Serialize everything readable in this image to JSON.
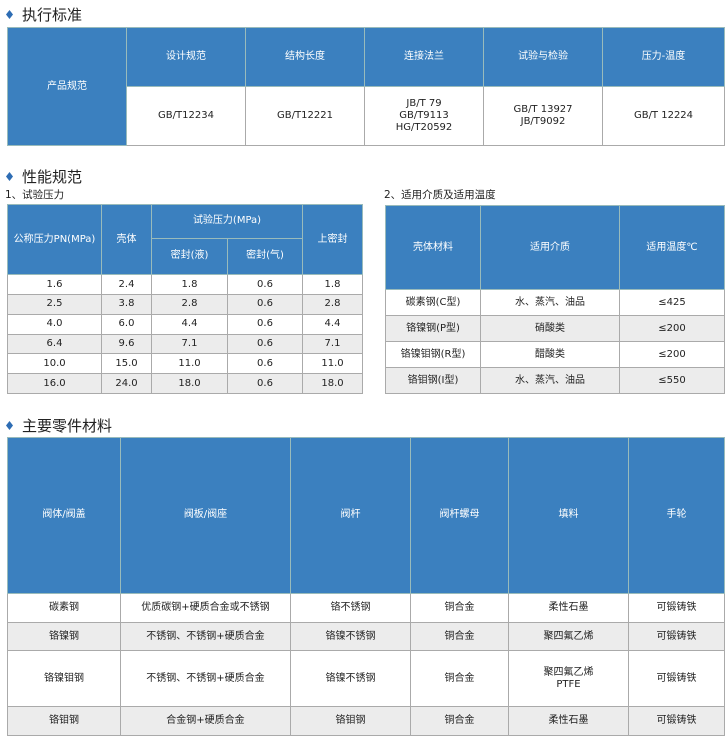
{
  "sections": {
    "standards": "执行标准",
    "performance": "性能规范",
    "materials": "主要零件材料"
  },
  "standards": {
    "row_label": "产品规范",
    "headers": [
      "设计规范",
      "结构长度",
      "连接法兰",
      "试验与检验",
      "压力-温度"
    ],
    "values": [
      "GB/T12234",
      "GB/T12221",
      "JB/T 79\nGB/T9113\nHG/T20592",
      "GB/T 13927\nJB/T9092",
      "GB/T 12224"
    ]
  },
  "pressure": {
    "caption": "1、试验压力",
    "headers": {
      "pn": "公称压力PN(MPa)",
      "shell": "壳体",
      "test": "试验压力(MPa)",
      "liquid": "密封(液)",
      "gas": "密封(气)",
      "upper": "上密封"
    },
    "rows": [
      [
        "1.6",
        "2.4",
        "1.8",
        "0.6",
        "1.8"
      ],
      [
        "2.5",
        "3.8",
        "2.8",
        "0.6",
        "2.8"
      ],
      [
        "4.0",
        "6.0",
        "4.4",
        "0.6",
        "4.4"
      ],
      [
        "6.4",
        "9.6",
        "7.1",
        "0.6",
        "7.1"
      ],
      [
        "10.0",
        "15.0",
        "11.0",
        "0.6",
        "11.0"
      ],
      [
        "16.0",
        "24.0",
        "18.0",
        "0.6",
        "18.0"
      ]
    ]
  },
  "media": {
    "caption": "2、适用介质及适用温度",
    "headers": [
      "壳体材料",
      "适用介质",
      "适用温度℃"
    ],
    "rows": [
      [
        "碳素钢(C型)",
        "水、蒸汽、油品",
        "≤425"
      ],
      [
        "铬镍钢(P型)",
        "硝酸类",
        "≤200"
      ],
      [
        "铬镍钼钢(R型)",
        "醋酸类",
        "≤200"
      ],
      [
        "铬钼钢(I型)",
        "水、蒸汽、油品",
        "≤550"
      ]
    ]
  },
  "parts": {
    "headers": [
      "阀体/阀盖",
      "阀板/阀座",
      "阀杆",
      "阀杆螺母",
      "填料",
      "手轮"
    ],
    "rows": [
      [
        "碳素钢",
        "优质碳钢+硬质合金或不锈钢",
        "铬不锈钢",
        "铜合金",
        "柔性石墨",
        "可锻铸铁"
      ],
      [
        "铬镍钢",
        "不锈钢、不锈钢+硬质合金",
        "铬镍不锈钢",
        "铜合金",
        "聚四氟乙烯",
        "可锻铸铁"
      ],
      [
        "铬镍钼钢",
        "不锈钢、不锈钢+硬质合金",
        "铬镍不锈钢",
        "铜合金",
        "聚四氟乙烯\nPTFE",
        "可锻铸铁"
      ],
      [
        "铬钼钢",
        "合金钢+硬质合金",
        "铬钼钢",
        "铜合金",
        "柔性石墨",
        "可锻铸铁"
      ]
    ]
  },
  "colors": {
    "header": "#3b80bf",
    "alt_row": "#ececec",
    "bullet": "#2e6db4"
  }
}
